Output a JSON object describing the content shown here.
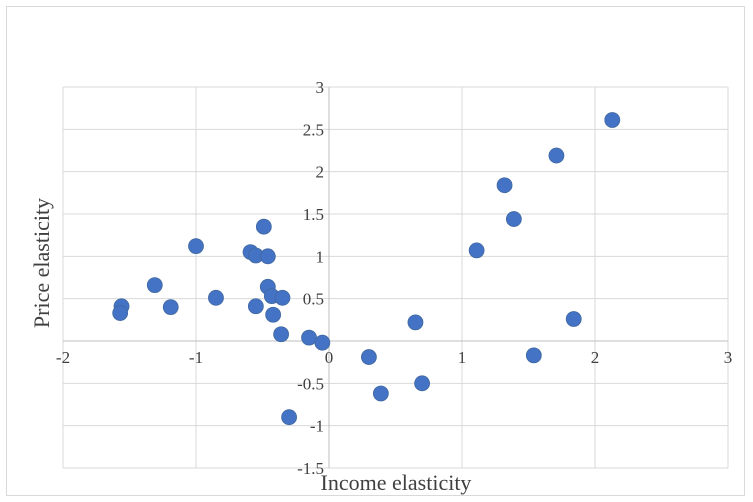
{
  "chart_data": {
    "type": "scatter",
    "title": "",
    "xlabel": "Income elasticity",
    "ylabel": "Price elasticity",
    "xlim": [
      -2,
      3
    ],
    "ylim": [
      -1.5,
      3
    ],
    "x_ticks": [
      -2,
      -1,
      0,
      1,
      2,
      3
    ],
    "y_ticks": [
      -1.5,
      -1,
      -0.5,
      0,
      0.5,
      1,
      1.5,
      2,
      2.5,
      3
    ],
    "x_tick_labels": [
      "-2",
      "-1",
      "0",
      "1",
      "2",
      "3"
    ],
    "y_tick_labels": [
      "-1.5",
      "-1",
      "-0.5",
      "0",
      "0.5",
      "1",
      "1.5",
      "2",
      "2.5",
      "3"
    ],
    "grid": "vertical and horizontal major gridlines",
    "legend": "none",
    "marker_color": "#4472C4",
    "series": [
      {
        "points": [
          {
            "x": -1.56,
            "y": 0.41
          },
          {
            "x": -1.57,
            "y": 0.33
          },
          {
            "x": -1.31,
            "y": 0.66
          },
          {
            "x": -1.19,
            "y": 0.4
          },
          {
            "x": -1.0,
            "y": 1.12
          },
          {
            "x": -0.85,
            "y": 0.51
          },
          {
            "x": -0.59,
            "y": 1.05
          },
          {
            "x": -0.55,
            "y": 1.01
          },
          {
            "x": -0.55,
            "y": 0.41
          },
          {
            "x": -0.49,
            "y": 1.35
          },
          {
            "x": -0.46,
            "y": 1.0
          },
          {
            "x": -0.46,
            "y": 0.64
          },
          {
            "x": -0.43,
            "y": 0.53
          },
          {
            "x": -0.42,
            "y": 0.31
          },
          {
            "x": -0.35,
            "y": 0.51
          },
          {
            "x": -0.36,
            "y": 0.08
          },
          {
            "x": -0.15,
            "y": 0.04
          },
          {
            "x": -0.05,
            "y": -0.02
          },
          {
            "x": -0.3,
            "y": -0.9
          },
          {
            "x": 0.3,
            "y": -0.19
          },
          {
            "x": 0.39,
            "y": -0.62
          },
          {
            "x": 0.65,
            "y": 0.22
          },
          {
            "x": 0.7,
            "y": -0.5
          },
          {
            "x": 1.11,
            "y": 1.07
          },
          {
            "x": 1.32,
            "y": 1.84
          },
          {
            "x": 1.39,
            "y": 1.44
          },
          {
            "x": 1.54,
            "y": -0.17
          },
          {
            "x": 1.71,
            "y": 2.19
          },
          {
            "x": 1.84,
            "y": 0.26
          },
          {
            "x": 2.13,
            "y": 2.61
          }
        ]
      }
    ]
  }
}
